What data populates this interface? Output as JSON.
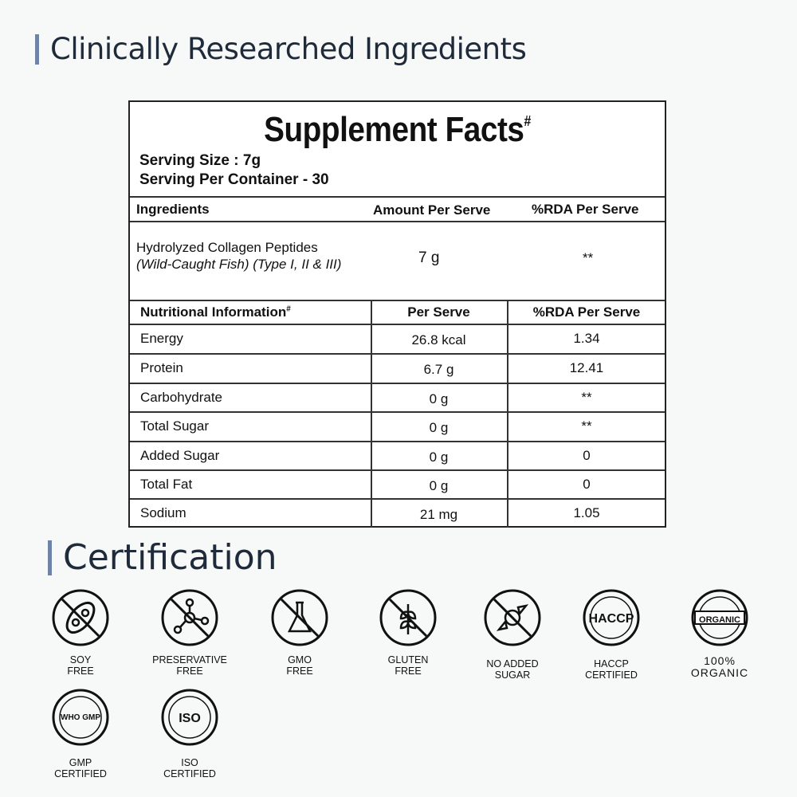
{
  "headings": {
    "ingredients": "Clinically Researched Ingredients",
    "certification": "Certification"
  },
  "facts": {
    "title": "Supplement Facts",
    "title_mark": "#",
    "serving_size": "Serving Size : 7g",
    "serving_per_container": "Serving Per Container - 30",
    "ingredient_headers": [
      "Ingredients",
      "Amount Per Serve",
      "%RDA Per Serve"
    ],
    "ingredient": {
      "name": "Hydrolyzed Collagen Peptides",
      "detail": "(Wild-Caught Fish) (Type I, II & III)",
      "amount": "7 g",
      "rda": "**"
    },
    "nutrition_headers": [
      "Nutritional Information",
      "Per Serve",
      "%RDA Per Serve"
    ],
    "nutrition_mark": "#",
    "nutrition": [
      {
        "name": "Energy",
        "per": "26.8 kcal",
        "rda": "1.34"
      },
      {
        "name": "Protein",
        "per": "6.7 g",
        "rda": "12.41"
      },
      {
        "name": "Carbohydrate",
        "per": "0 g",
        "rda": "**"
      },
      {
        "name": "Total Sugar",
        "per": "0 g",
        "rda": "**"
      },
      {
        "name": "Added Sugar",
        "per": "0 g",
        "rda": "0"
      },
      {
        "name": "Total Fat",
        "per": "0 g",
        "rda": "0"
      },
      {
        "name": "Sodium",
        "per": "21 mg",
        "rda": "1.05"
      }
    ]
  },
  "certifications": [
    {
      "icon": "soy-free-icon",
      "l1": "SOY",
      "l2": "FREE"
    },
    {
      "icon": "preservative-free-icon",
      "l1": "PRESERVATIVE",
      "l2": "FREE"
    },
    {
      "icon": "gmo-free-icon",
      "l1": "GMO",
      "l2": "FREE"
    },
    {
      "icon": "gluten-free-icon",
      "l1": "GLUTEN",
      "l2": "FREE"
    },
    {
      "icon": "no-added-sugar-icon",
      "l1": "NO ADDED",
      "l2": "SUGAR"
    },
    {
      "icon": "haccp-icon",
      "l1": "HACCP",
      "l2": "CERTIFIED",
      "badge": "HACCP"
    },
    {
      "icon": "organic-icon",
      "l1": "100%",
      "l2": "ORGANIC",
      "badge": "ORGANIC"
    },
    {
      "icon": "gmp-icon",
      "l1": "GMP",
      "l2": "CERTIFIED",
      "badge": "WHO GMP"
    },
    {
      "icon": "iso-icon",
      "l1": "ISO",
      "l2": "CERTIFIED",
      "badge": "ISO"
    }
  ],
  "colors": {
    "accent": "#6f82a8",
    "heading": "#1f2a3a",
    "background": "#f7f8f8"
  }
}
